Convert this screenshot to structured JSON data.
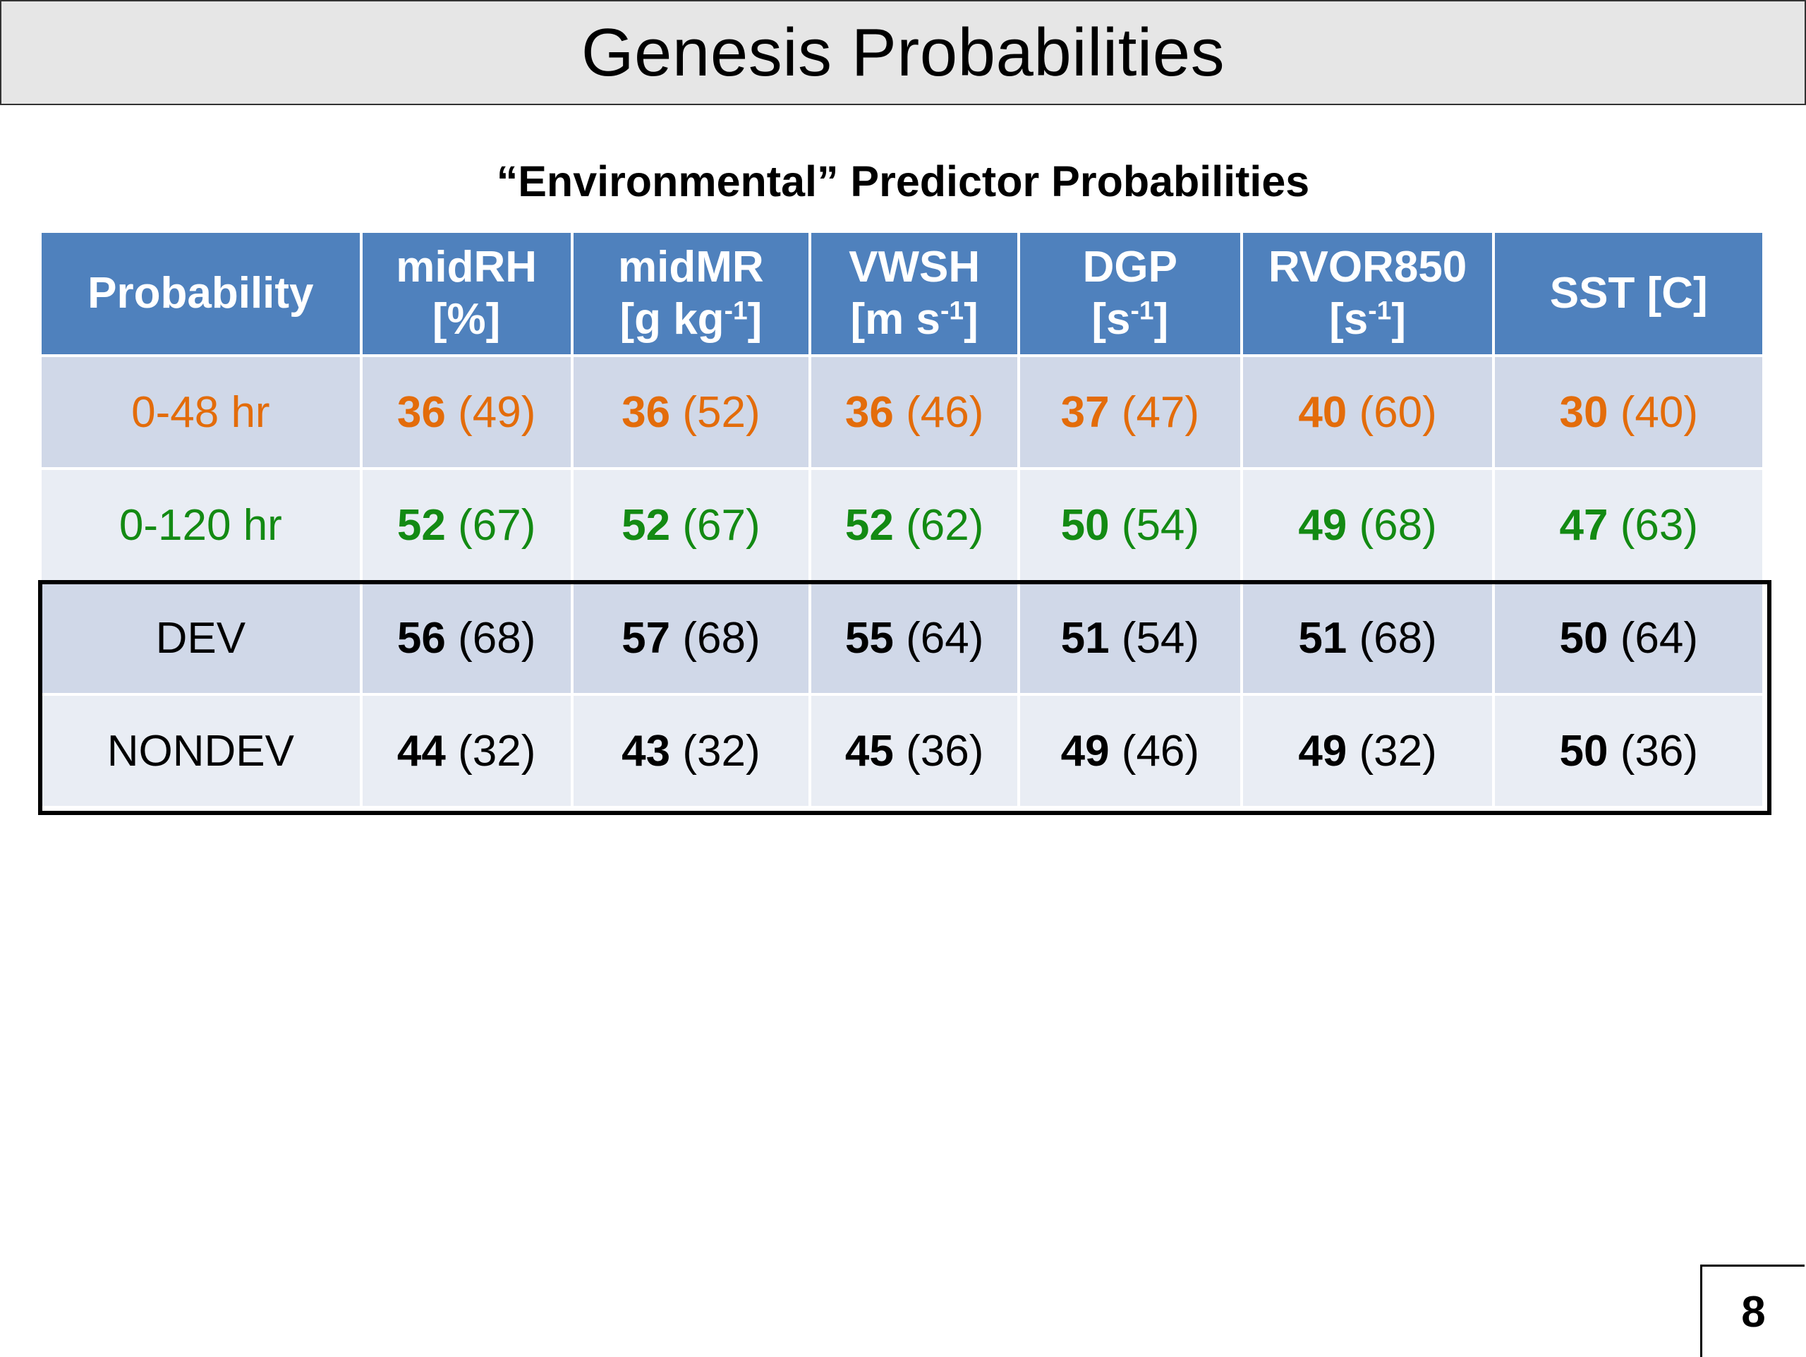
{
  "slide": {
    "title": "Genesis Probabilities",
    "subtitle": "“Environmental” Predictor Probabilities",
    "page_number": "8"
  },
  "table": {
    "header_label": "Probability",
    "columns": [
      {
        "name": "midRH",
        "unit_pre": "[%]",
        "unit_sup": "",
        "unit_post": ""
      },
      {
        "name": "midMR",
        "unit_pre": "[g kg",
        "unit_sup": "-1",
        "unit_post": "]"
      },
      {
        "name": "VWSH",
        "unit_pre": "[m s",
        "unit_sup": "-1",
        "unit_post": "]"
      },
      {
        "name": "DGP",
        "unit_pre": "[s",
        "unit_sup": "-1",
        "unit_post": "]"
      },
      {
        "name": "RVOR850",
        "unit_pre": "[s",
        "unit_sup": "-1",
        "unit_post": "]"
      },
      {
        "name": "SST [C]",
        "unit_pre": "",
        "unit_sup": "",
        "unit_post": ""
      }
    ],
    "rows": [
      {
        "label": "0-48 hr",
        "color": "#e36c0a",
        "cells": [
          [
            "36",
            "(49)"
          ],
          [
            "36",
            "(52)"
          ],
          [
            "36",
            "(46)"
          ],
          [
            "37",
            "(47)"
          ],
          [
            "40",
            "(60)"
          ],
          [
            "30",
            "(40)"
          ]
        ]
      },
      {
        "label": "0-120 hr",
        "color": "#138a13",
        "cells": [
          [
            "52",
            "(67)"
          ],
          [
            "52",
            "(67)"
          ],
          [
            "52",
            "(62)"
          ],
          [
            "50",
            "(54)"
          ],
          [
            "49",
            "(68)"
          ],
          [
            "47",
            "(63)"
          ]
        ]
      },
      {
        "label": "DEV",
        "color": "#000000",
        "cells": [
          [
            "56",
            "(68)"
          ],
          [
            "57",
            "(68)"
          ],
          [
            "55",
            "(64)"
          ],
          [
            "51",
            "(54)"
          ],
          [
            "51",
            "(68)"
          ],
          [
            "50",
            "(64)"
          ]
        ]
      },
      {
        "label": "NONDEV",
        "color": "#000000",
        "cells": [
          [
            "44",
            "(32)"
          ],
          [
            "43",
            "(32)"
          ],
          [
            "45",
            "(36)"
          ],
          [
            "49",
            "(46)"
          ],
          [
            "49",
            "(32)"
          ],
          [
            "50",
            "(36)"
          ]
        ]
      }
    ]
  },
  "colors": {
    "header_bg": "#4f81bd",
    "row_dark": "#d0d8e8",
    "row_light": "#e9edf4",
    "title_bar_bg": "#e6e6e6"
  }
}
